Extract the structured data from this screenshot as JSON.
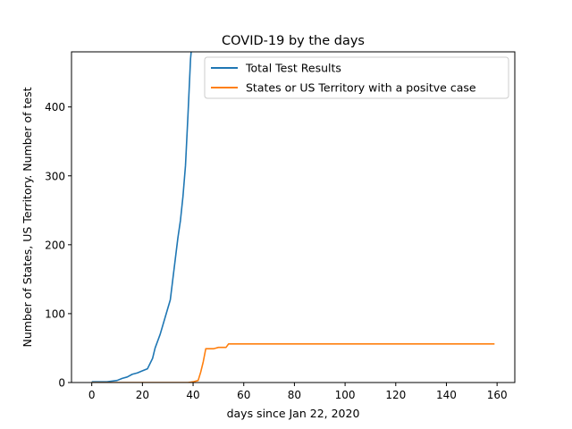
{
  "chart_data": {
    "type": "line",
    "title": "COVID-19 by the days",
    "xlabel": "days since Jan 22, 2020",
    "ylabel": "Number of States, US Territory. Number of test",
    "xlim": [
      -8,
      167
    ],
    "ylim": [
      0,
      480
    ],
    "x_ticks": [
      0,
      20,
      40,
      60,
      80,
      100,
      120,
      140,
      160
    ],
    "y_ticks": [
      0,
      100,
      200,
      300,
      400
    ],
    "grid": false,
    "legend_position": "upper right",
    "series": [
      {
        "name": "Total Test Results",
        "color": "#1f77b4",
        "x": [
          0,
          2,
          4,
          6,
          8,
          10,
          12,
          14,
          16,
          18,
          20,
          22,
          24,
          25,
          27,
          29,
          31,
          32,
          33,
          34,
          35,
          36,
          37,
          38,
          39,
          39.5,
          40
        ],
        "y": [
          1,
          1,
          1,
          1,
          2,
          3,
          6,
          8,
          12,
          14,
          17,
          20,
          35,
          50,
          70,
          95,
          120,
          150,
          180,
          210,
          235,
          270,
          315,
          390,
          470,
          490,
          520
        ]
      },
      {
        "name": "States or US Territory with a positve case",
        "color": "#ff7f0e",
        "x": [
          0,
          38,
          40,
          42,
          43,
          44,
          45,
          46,
          47,
          48,
          49,
          50,
          51,
          52,
          53,
          54,
          60,
          80,
          100,
          120,
          140,
          159
        ],
        "y": [
          0,
          0,
          1,
          3,
          15,
          30,
          49,
          49,
          49,
          49,
          50,
          51,
          51,
          51,
          51,
          56,
          56,
          56,
          56,
          56,
          56,
          56
        ]
      }
    ]
  }
}
